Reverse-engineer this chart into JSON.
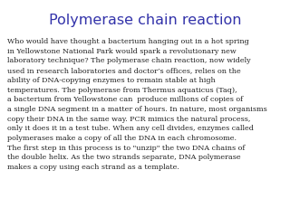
{
  "title": "Polymerase chain reaction",
  "title_color": "#3333aa",
  "title_fontsize": 11.5,
  "title_font": "DejaVu Sans",
  "body_text": "Who would have thought a bacterium hanging out in a hot spring\nin Yellowstone National Park would spark a revolutionary new\nlaboratory technique? The polymerase chain reaction, now widely\nused in research laboratories and doctor’s offices, relies on the\nability of DNA-copying enzymes to remain stable at high\ntemperatures. The polymerase from Thermus aquaticus (Taq),\na bacterium from Yellowstone can  produce millions of copies of\na single DNA segment in a matter of hours. In nature, most organisms\ncopy their DNA in the same way. PCR mimics the natural process,\nonly it does it in a test tube. When any cell divides, enzymes called\npolymerases make a copy of all the DNA in each chromosome.\nThe first step in this process is to \"unzip\" the two DNA chains of\nthe double helix. As the two strands separate, DNA polymerase\nmakes a copy using each strand as a template.",
  "body_color": "#222222",
  "body_fontsize": 5.8,
  "body_font": "DejaVu Serif",
  "background_color": "#ffffff",
  "fig_width": 3.2,
  "fig_height": 2.4,
  "dpi": 100
}
